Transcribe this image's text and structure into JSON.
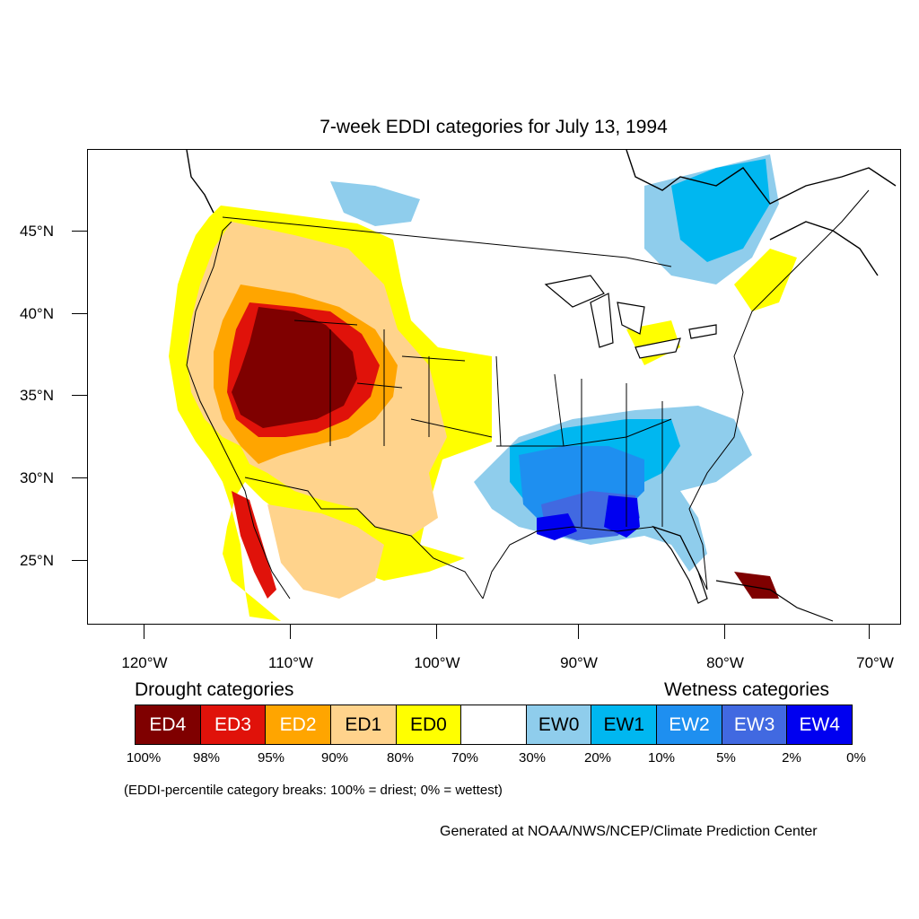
{
  "map": {
    "title": "7-week EDDI categories for July 13, 1994",
    "lat_labels": [
      "45°N",
      "40°N",
      "35°N",
      "30°N",
      "25°N"
    ],
    "lon_labels": [
      "120°W",
      "110°W",
      "100°W",
      "90°W",
      "80°W",
      "70°W"
    ]
  },
  "legend": {
    "drought_heading": "Drought categories",
    "wetness_heading": "Wetness categories",
    "categories": [
      {
        "label": "ED4",
        "color": "#7f0000",
        "text_color": "#ffffff"
      },
      {
        "label": "ED3",
        "color": "#e0120a",
        "text_color": "#ffffff"
      },
      {
        "label": "ED2",
        "color": "#ffa500",
        "text_color": "#ffffff"
      },
      {
        "label": "ED1",
        "color": "#ffd38c",
        "text_color": "#000000"
      },
      {
        "label": "ED0",
        "color": "#ffff00",
        "text_color": "#000000"
      },
      {
        "label": "",
        "color": "#ffffff",
        "text_color": "#000000"
      },
      {
        "label": "EW0",
        "color": "#8fcdec",
        "text_color": "#000000"
      },
      {
        "label": "EW1",
        "color": "#00b7f0",
        "text_color": "#000000"
      },
      {
        "label": "EW2",
        "color": "#1e8ff0",
        "text_color": "#ffffff"
      },
      {
        "label": "EW3",
        "color": "#4169e1",
        "text_color": "#ffffff"
      },
      {
        "label": "EW4",
        "color": "#0000f0",
        "text_color": "#ffffff"
      }
    ],
    "breaks": [
      "100%",
      "98%",
      "95%",
      "90%",
      "80%",
      "70%",
      "30%",
      "20%",
      "10%",
      "5%",
      "2%",
      "0%"
    ],
    "note": "(EDDI-percentile category breaks: 100% = driest; 0% = wettest)"
  },
  "footer": {
    "credit": "Generated at NOAA/NWS/NCEP/Climate Prediction Center"
  }
}
